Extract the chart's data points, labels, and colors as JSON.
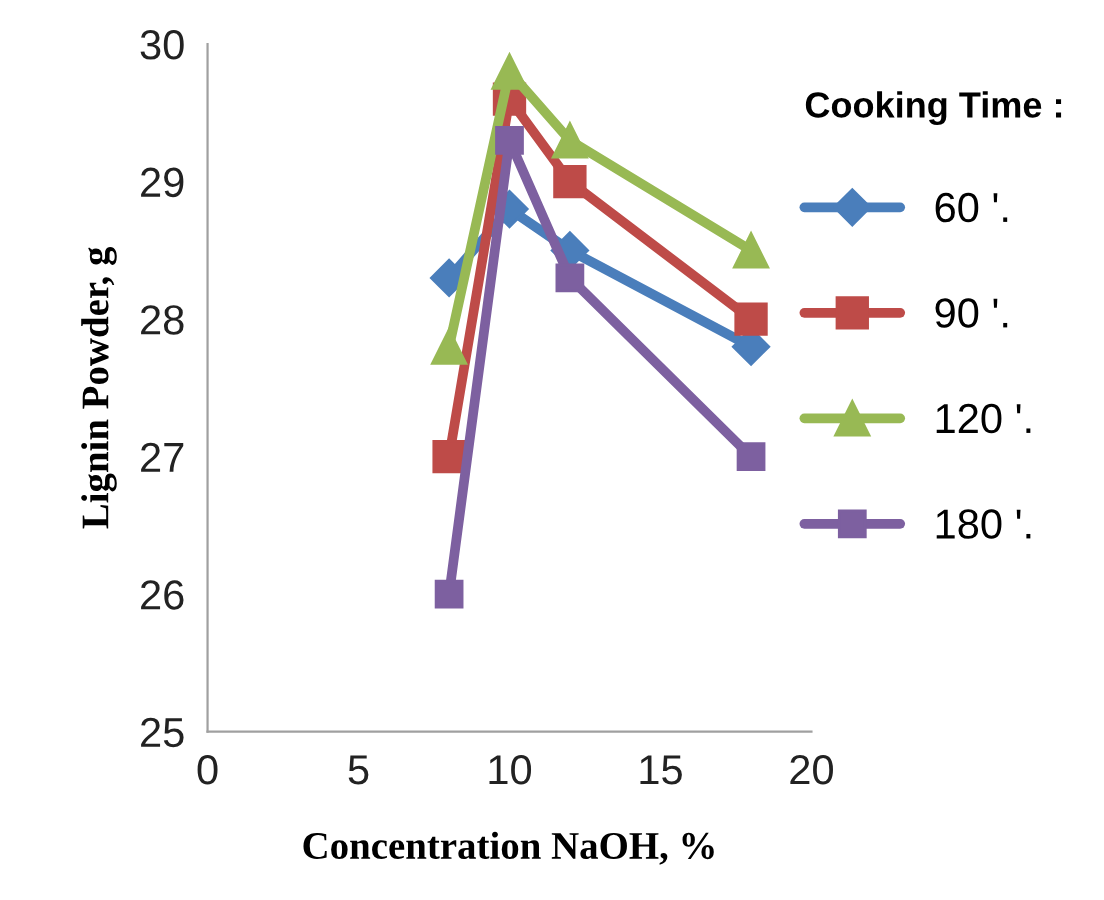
{
  "chart_data": {
    "type": "line",
    "xlabel": "Concentration NaOH, %",
    "ylabel": "Lignin Powder, g",
    "legend_title": "Cooking Time :",
    "legend": "right",
    "grid": false,
    "x": [
      8,
      10,
      12,
      18
    ],
    "xlim": [
      0,
      20
    ],
    "xticks": [
      0,
      5,
      10,
      15,
      20
    ],
    "ylim": [
      25,
      30
    ],
    "yticks": [
      25,
      26,
      27,
      28,
      29,
      30
    ],
    "series": [
      {
        "name": "60 '.",
        "color": "#4a7ebb",
        "marker": "diamond",
        "values": [
          28.3,
          28.8,
          28.5,
          27.8
        ]
      },
      {
        "name": "90 '.",
        "color": "#be4b48",
        "marker": "square",
        "values": [
          27,
          29.6,
          29,
          28
        ]
      },
      {
        "name": "120 '.",
        "color": "#98b954",
        "marker": "triangle",
        "values": [
          27.8,
          29.8,
          29.3,
          28.5
        ]
      },
      {
        "name": "180 '.",
        "color": "#7d60a0",
        "marker": "square",
        "values": [
          26,
          29.3,
          28.3,
          27
        ]
      }
    ]
  }
}
